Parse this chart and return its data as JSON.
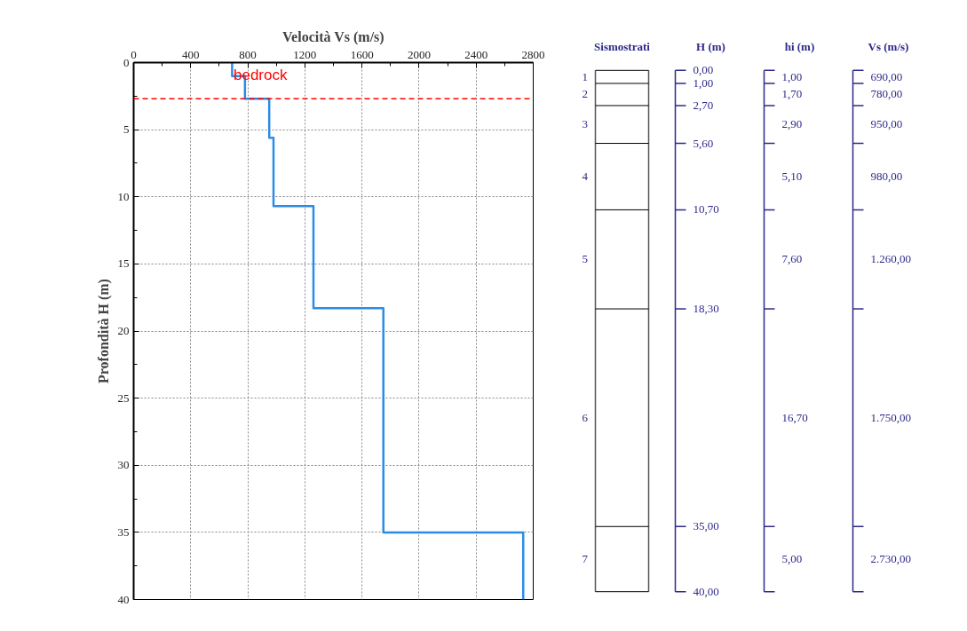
{
  "chart_data": [
    {
      "type": "line",
      "xlabel": "Velocità Vs (m/s)",
      "ylabel": "Profondità H (m)",
      "xlim": [
        0,
        2800
      ],
      "xticks": [
        0,
        400,
        800,
        1200,
        1600,
        2000,
        2400,
        2800
      ],
      "ylim": [
        40,
        0
      ],
      "yticks": [
        0,
        5,
        10,
        15,
        20,
        25,
        30,
        35,
        40
      ],
      "grid": true,
      "marker": "none",
      "line_style": "solid",
      "x": [
        690,
        690,
        780,
        780,
        950,
        950,
        980,
        980,
        1260,
        1260,
        1750,
        1750,
        2730,
        2730
      ],
      "series": [
        {
          "color": "#2b8ce8",
          "values": [
            0,
            1,
            1,
            2.7,
            2.7,
            5.6,
            5.6,
            10.7,
            10.7,
            18.3,
            18.3,
            35,
            35,
            40
          ]
        }
      ],
      "ref_lines": [
        {
          "axis": "y",
          "value": 2.7,
          "label": "bedrock",
          "color": "#ff0000",
          "line_style": "dashed"
        }
      ]
    },
    {
      "type": "other",
      "categories": [
        "Sismostrati",
        "H (m)",
        "hi (m)",
        "Vs (m/s)"
      ],
      "annotations": [
        "1",
        "2",
        "3",
        "4",
        "5",
        "6",
        "7",
        "0,00",
        "1,00",
        "2,70",
        "5,60",
        "10,70",
        "18,30",
        "35,00",
        "40,00",
        "1,00",
        "1,70",
        "2,90",
        "5,10",
        "7,60",
        "16,70",
        "5,00",
        "690,00",
        "780,00",
        "950,00",
        "980,00",
        "1.260,00",
        "1.750,00",
        "2.730,00"
      ],
      "color": "#2e2a8a"
    }
  ]
}
